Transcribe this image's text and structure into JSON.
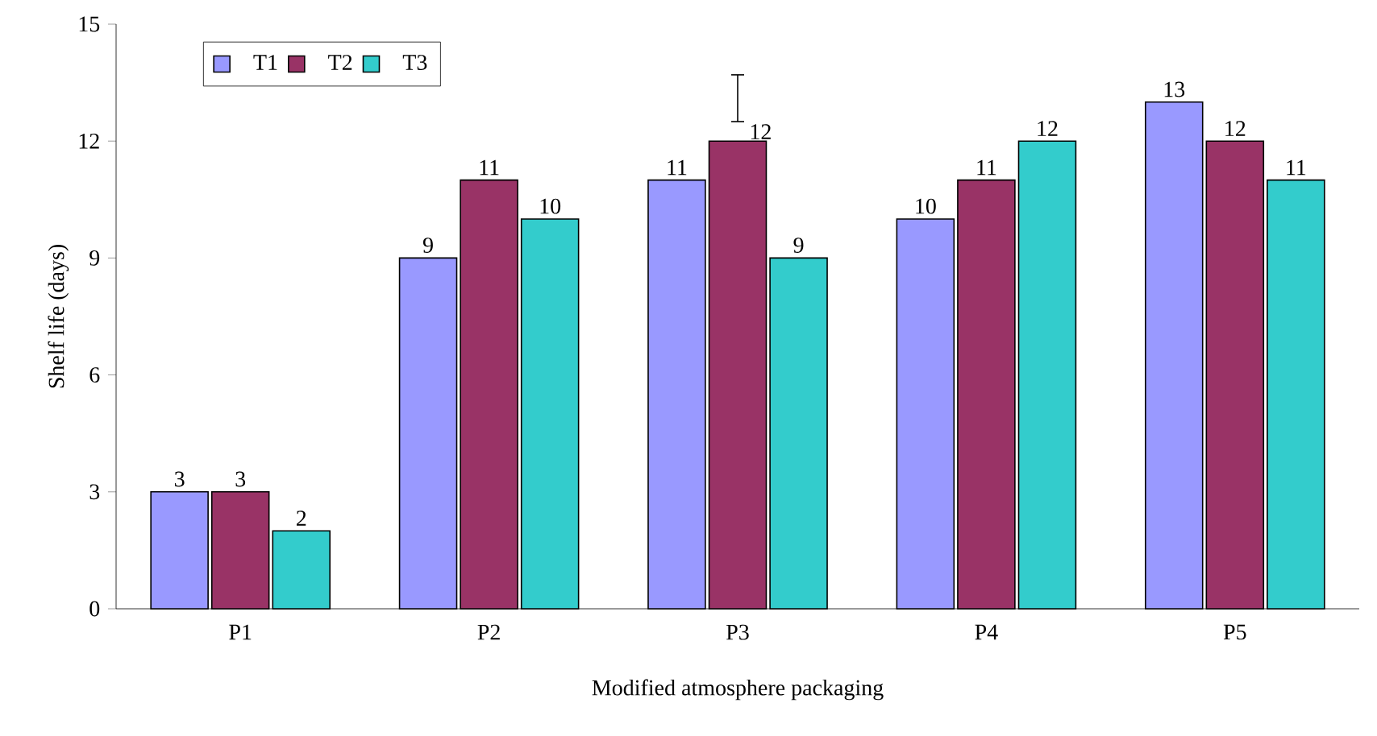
{
  "chart_data": {
    "type": "bar",
    "xlabel": "Modified atmosphere packaging",
    "ylabel": "Shelf life (days)",
    "categories": [
      "P1",
      "P2",
      "P3",
      "P4",
      "P5"
    ],
    "series": [
      {
        "name": "T1",
        "color": "#9999ff",
        "values": [
          3,
          9,
          11,
          10,
          13
        ]
      },
      {
        "name": "T2",
        "color": "#993366",
        "values": [
          3,
          11,
          12,
          11,
          12
        ],
        "errors": [
          null,
          null,
          [
            12.5,
            13.7
          ],
          null,
          null
        ]
      },
      {
        "name": "T3",
        "color": "#33cccc",
        "values": [
          2,
          10,
          9,
          12,
          11
        ]
      }
    ],
    "ylim": [
      0,
      15
    ],
    "yticks": [
      0,
      3,
      6,
      9,
      12,
      15
    ],
    "data_labels": true,
    "legend": "top left",
    "grid": false
  }
}
